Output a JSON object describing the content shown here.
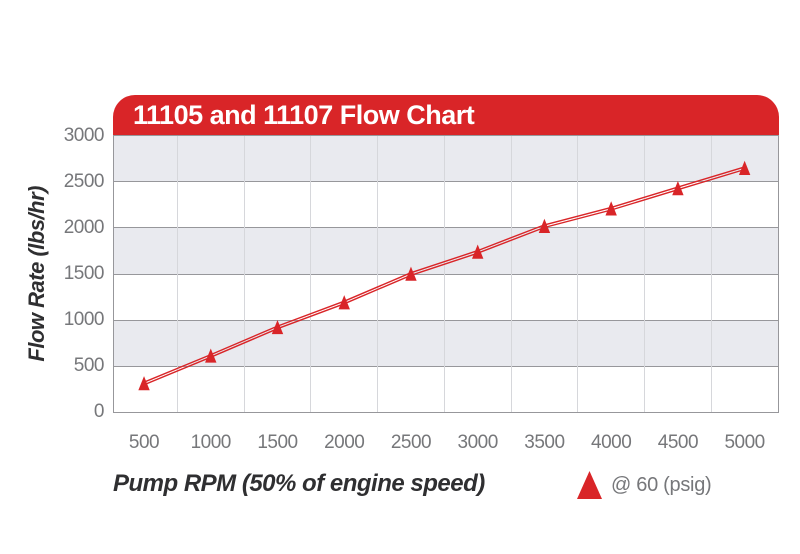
{
  "title": "11105 and 11107 Flow Chart",
  "legend": {
    "label": "@ 60 (psig)",
    "marker": "triangle-up-icon"
  },
  "colors": {
    "red": "#d92528",
    "band_gray": "#e9eaef",
    "grid_dark": "#97979b",
    "grid_light": "#d6d7db",
    "tick_text": "#76777a",
    "title_text": "#2f2f31",
    "header_text": "#ffffff"
  },
  "chart_data": {
    "type": "line",
    "title": "11105 and 11107 Flow Chart",
    "xlabel": "Pump RPM (50% of engine speed)",
    "ylabel": "Flow Rate (lbs/hr)",
    "x": [
      500,
      1000,
      1500,
      2000,
      2500,
      3000,
      3500,
      4000,
      4500,
      5000
    ],
    "series": [
      {
        "name": "@ 60 (psig)",
        "values": [
          310,
          610,
          920,
          1190,
          1500,
          1740,
          2020,
          2210,
          2430,
          2650
        ],
        "color": "#d92528",
        "marker": "triangle-up",
        "line_style": "double-stroke"
      }
    ],
    "xticks": [
      500,
      1000,
      1500,
      2000,
      2500,
      3000,
      3500,
      4000,
      4500,
      5000
    ],
    "yticks": [
      0,
      500,
      1000,
      1500,
      2000,
      2500,
      3000
    ],
    "xlim": [
      275,
      5250
    ],
    "ylim": [
      0,
      3000
    ],
    "band_step": 500,
    "band_style": "alternating gray/white horizontal bands, gray topmost",
    "minor_vgrid_x": [
      750,
      1250,
      1750,
      2250,
      2750,
      3250,
      3750,
      4250,
      4750
    ],
    "grid": "horizontal lines every 500, light vertical lines at 250-offsets",
    "legend_position": "bottom-right"
  }
}
